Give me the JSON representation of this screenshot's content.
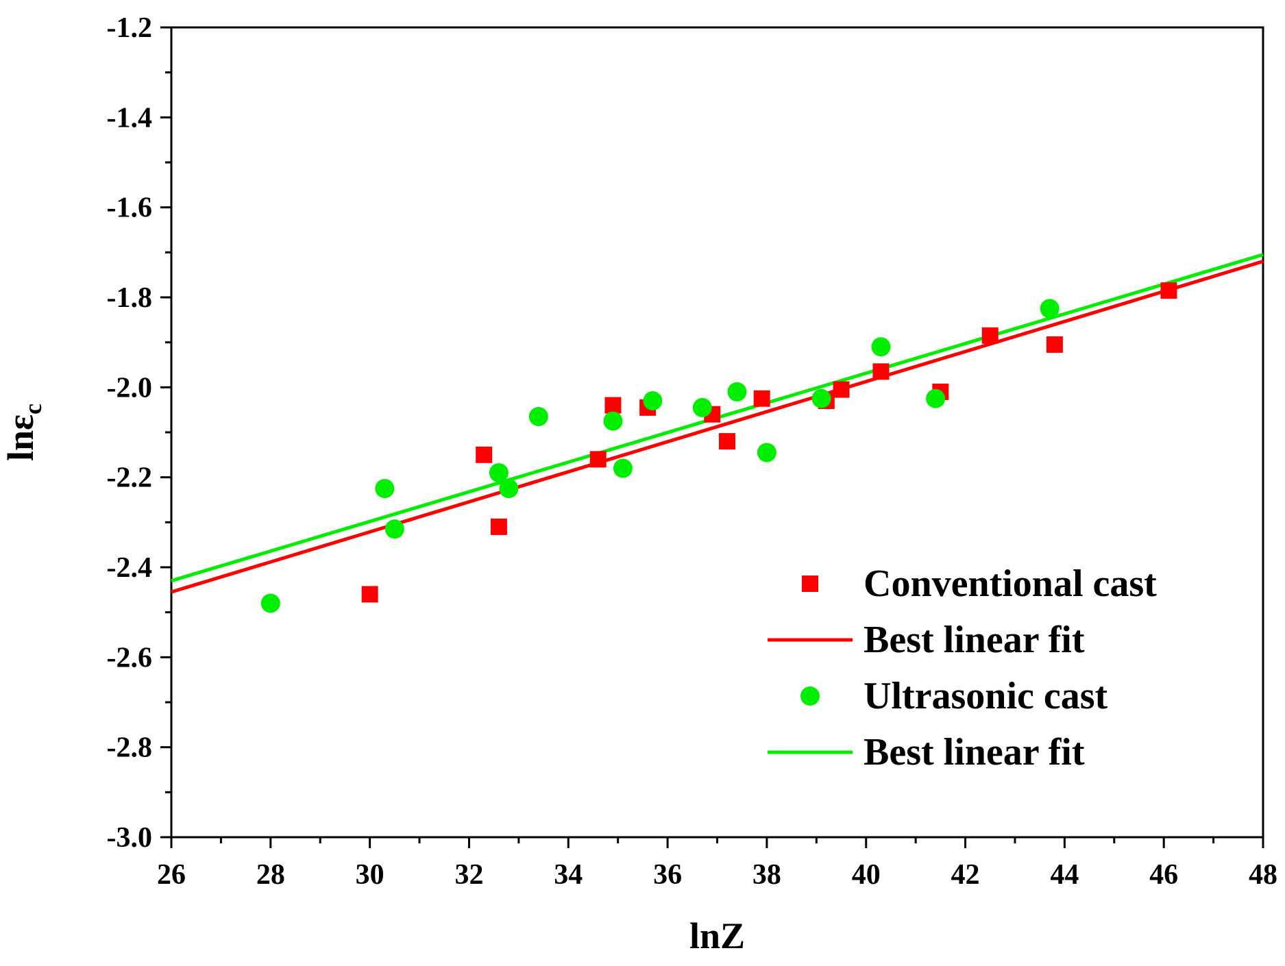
{
  "chart_data": {
    "type": "scatter",
    "title": "",
    "xlabel": "lnZ",
    "ylabel_main": "lnε",
    "ylabel_sub": "c",
    "xlim": [
      26,
      48
    ],
    "ylim": [
      -3.0,
      -1.2
    ],
    "x_ticks": [
      26,
      28,
      30,
      32,
      34,
      36,
      38,
      40,
      42,
      44,
      46,
      48
    ],
    "x_tick_labels": [
      "26",
      "28",
      "30",
      "32",
      "34",
      "36",
      "38",
      "40",
      "42",
      "44",
      "46",
      "48"
    ],
    "y_ticks": [
      -3.0,
      -2.8,
      -2.6,
      -2.4,
      -2.2,
      -2.0,
      -1.8,
      -1.6,
      -1.4,
      -1.2
    ],
    "y_tick_labels": [
      "-3.0",
      "-2.8",
      "-2.6",
      "-2.4",
      "-2.2",
      "-2.0",
      "-1.8",
      "-1.6",
      "-1.4",
      "-1.2"
    ],
    "grid": false,
    "legend_position": "bottom-right",
    "series": [
      {
        "name": "Conventional cast",
        "kind": "scatter",
        "marker": "square",
        "color": "#ff0000",
        "points": [
          [
            30.0,
            -2.46
          ],
          [
            32.3,
            -2.15
          ],
          [
            32.6,
            -2.31
          ],
          [
            34.6,
            -2.16
          ],
          [
            34.9,
            -2.04
          ],
          [
            35.6,
            -2.045
          ],
          [
            36.9,
            -2.06
          ],
          [
            37.2,
            -2.12
          ],
          [
            37.9,
            -2.025
          ],
          [
            39.2,
            -2.03
          ],
          [
            39.5,
            -2.005
          ],
          [
            40.3,
            -1.965
          ],
          [
            41.5,
            -2.01
          ],
          [
            42.5,
            -1.885
          ],
          [
            43.8,
            -1.905
          ],
          [
            46.1,
            -1.785
          ]
        ]
      },
      {
        "name": "Best linear fit",
        "kind": "line",
        "color": "#ff0000",
        "points": [
          [
            26,
            -2.455
          ],
          [
            48,
            -1.72
          ]
        ]
      },
      {
        "name": "Ultrasonic cast",
        "kind": "scatter",
        "marker": "circle",
        "color": "#00ee00",
        "points": [
          [
            28.0,
            -2.48
          ],
          [
            30.3,
            -2.225
          ],
          [
            30.5,
            -2.315
          ],
          [
            32.6,
            -2.19
          ],
          [
            32.8,
            -2.225
          ],
          [
            33.4,
            -2.065
          ],
          [
            34.9,
            -2.075
          ],
          [
            35.1,
            -2.18
          ],
          [
            35.7,
            -2.03
          ],
          [
            36.7,
            -2.045
          ],
          [
            37.4,
            -2.01
          ],
          [
            38.0,
            -2.145
          ],
          [
            39.1,
            -2.025
          ],
          [
            40.3,
            -1.91
          ],
          [
            41.4,
            -2.025
          ],
          [
            43.7,
            -1.825
          ]
        ]
      },
      {
        "name": "Best linear fit",
        "kind": "line",
        "color": "#00ee00",
        "points": [
          [
            26,
            -2.43
          ],
          [
            48,
            -1.705
          ]
        ]
      }
    ]
  }
}
